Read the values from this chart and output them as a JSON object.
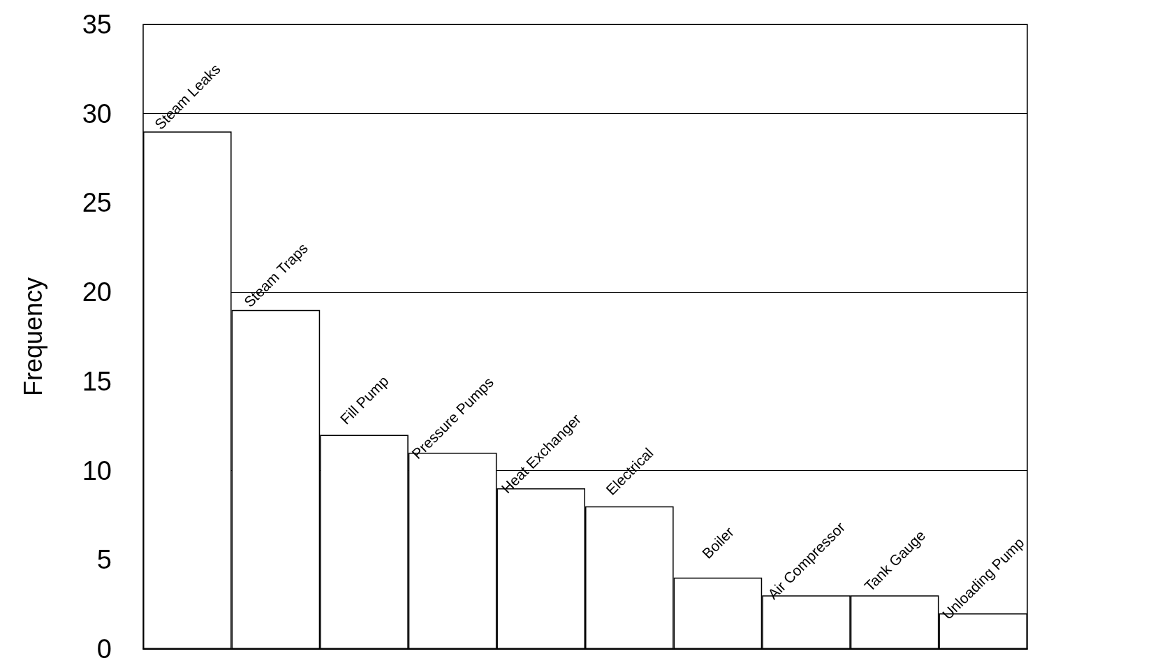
{
  "chart_data": {
    "type": "bar",
    "ylabel": "Frequency",
    "categories": [
      "Steam Leaks",
      "Steam Traps",
      "Fill Pump",
      "Pressure Pumps",
      "Heat Exchanger",
      "Electrical",
      "Boiler",
      "Air Compressor",
      "Tank Gauge",
      "Unloading Pump"
    ],
    "values": [
      29,
      19,
      12,
      11,
      9,
      8,
      4,
      3,
      3,
      2
    ],
    "color": "#ffffff",
    "ylim": [
      0,
      35
    ],
    "yticks": [
      0,
      5,
      10,
      15,
      20,
      25,
      30,
      35
    ],
    "grid": "y",
    "tick_labels": "y"
  }
}
